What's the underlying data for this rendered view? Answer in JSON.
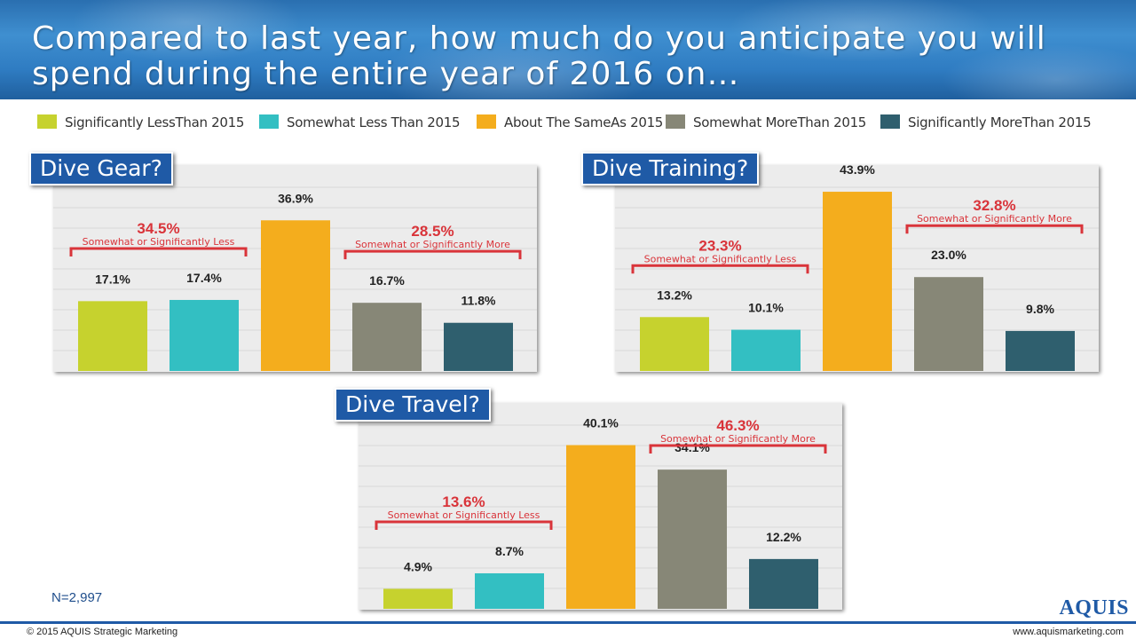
{
  "slide": {
    "title": "Compared to last year, how much do you anticipate you will spend during the entire year of 2016 on…",
    "sample_size": "N=2,997",
    "footer_left": "© 2015 AQUIS Strategic Marketing",
    "footer_right": "www.aquismarketing.com",
    "logo": "AQUIS"
  },
  "legend": [
    {
      "label": "Significantly LessThan 2015",
      "color": "#c6d22e"
    },
    {
      "label": "Somewhat Less Than 2015",
      "color": "#33bfc2"
    },
    {
      "label": "About The SameAs 2015",
      "color": "#f4ad1d"
    },
    {
      "label": "Somewhat MoreThan 2015",
      "color": "#878777"
    },
    {
      "label": "Significantly MoreThan 2015",
      "color": "#2f5f6e"
    }
  ],
  "chart_data": [
    {
      "type": "bar",
      "title": "Dive Gear?",
      "categories": [
        "Significantly LessThan 2015",
        "Somewhat Less Than 2015",
        "About The SameAs 2015",
        "Somewhat MoreThan 2015",
        "Significantly MoreThan 2015"
      ],
      "values": [
        17.1,
        17.4,
        36.9,
        16.7,
        11.8
      ],
      "value_labels": [
        "17.1%",
        "17.4%",
        "36.9%",
        "16.7%",
        "11.8%"
      ],
      "ylim": [
        0,
        50
      ],
      "grid": true,
      "annotations": [
        {
          "value": "34.5%",
          "text": "Somewhat or Significantly Less",
          "span": [
            0,
            1
          ]
        },
        {
          "value": "28.5%",
          "text": "Somewhat or Significantly More",
          "span": [
            3,
            4
          ]
        }
      ]
    },
    {
      "type": "bar",
      "title": "Dive Training?",
      "categories": [
        "Significantly LessThan 2015",
        "Somewhat Less Than 2015",
        "About The SameAs 2015",
        "Somewhat MoreThan 2015",
        "Significantly MoreThan 2015"
      ],
      "values": [
        13.2,
        10.1,
        43.9,
        23.0,
        9.8
      ],
      "value_labels": [
        "13.2%",
        "10.1%",
        "43.9%",
        "23.0%",
        "9.8%"
      ],
      "ylim": [
        0,
        50
      ],
      "grid": true,
      "annotations": [
        {
          "value": "23.3%",
          "text": "Somewhat or Significantly Less",
          "span": [
            0,
            1
          ]
        },
        {
          "value": "32.8%",
          "text": "Somewhat or Significantly More",
          "span": [
            3,
            4
          ]
        }
      ]
    },
    {
      "type": "bar",
      "title": "Dive Travel?",
      "categories": [
        "Significantly LessThan 2015",
        "Somewhat Less Than 2015",
        "About The SameAs 2015",
        "Somewhat MoreThan 2015",
        "Significantly MoreThan 2015"
      ],
      "values": [
        4.9,
        8.7,
        40.1,
        34.1,
        12.2
      ],
      "value_labels": [
        "4.9%",
        "8.7%",
        "40.1%",
        "34.1%",
        "12.2%"
      ],
      "ylim": [
        0,
        50
      ],
      "grid": true,
      "annotations": [
        {
          "value": "13.6%",
          "text": "Somewhat or Significantly Less",
          "span": [
            0,
            1
          ]
        },
        {
          "value": "46.3%",
          "text": "Somewhat or Significantly More",
          "span": [
            3,
            4
          ]
        }
      ]
    }
  ]
}
